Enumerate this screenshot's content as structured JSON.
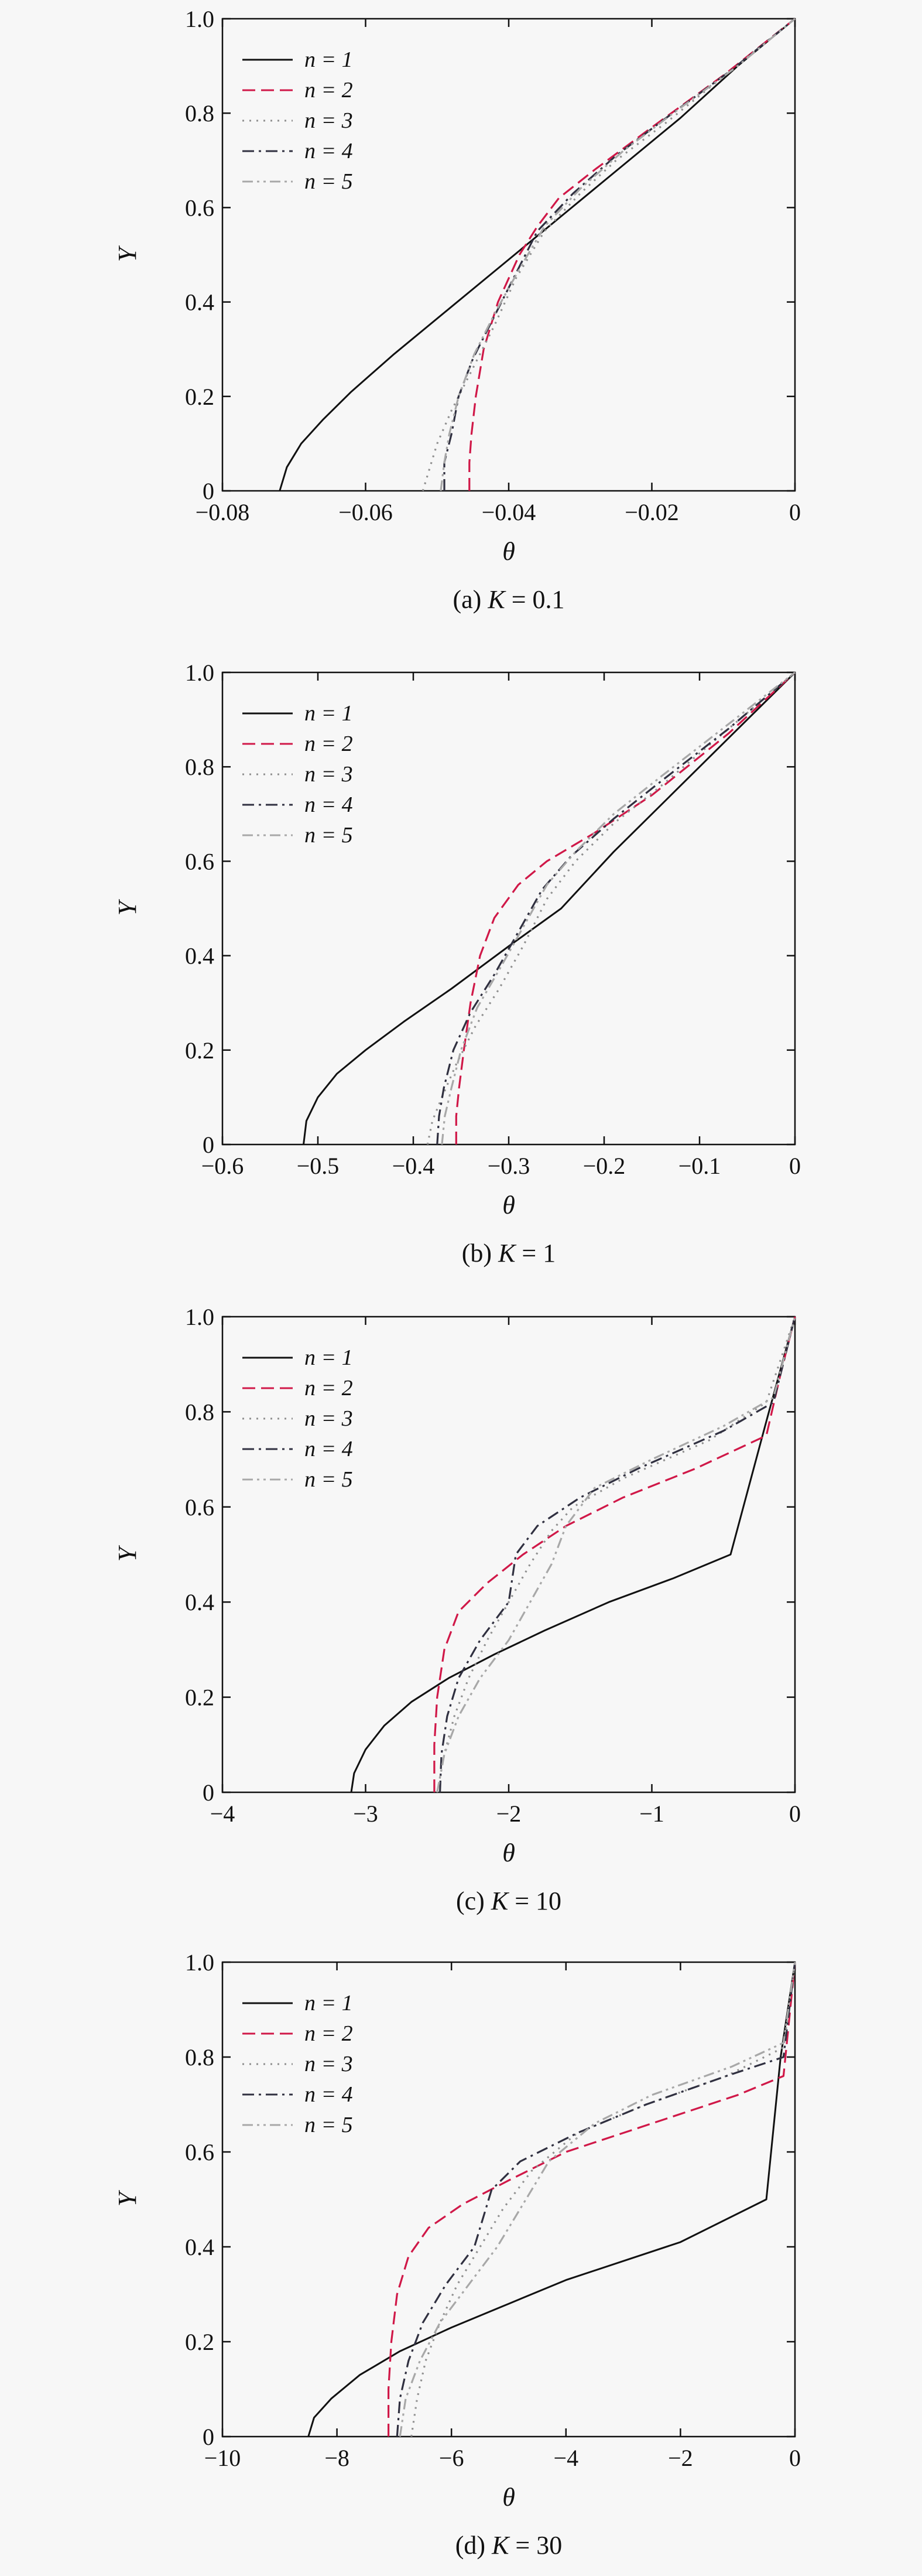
{
  "colors": {
    "background": "#f7f7f7",
    "axis": "#111111",
    "n1": "#111111",
    "n2": "#d01848",
    "n3": "#909090",
    "n4": "#303040",
    "n5": "#a8a8a8"
  },
  "chart_data": [
    {
      "type": "line",
      "caption_prefix": "(a) ",
      "caption_var": "K",
      "caption_suffix": " = 0.1",
      "xlabel": "θ",
      "ylabel": "Y",
      "xlim": [
        -0.08,
        0
      ],
      "ylim": [
        0,
        1.0
      ],
      "xticks": [
        -0.08,
        -0.06,
        -0.04,
        -0.02,
        0
      ],
      "xtick_labels": [
        "−0.08",
        "−0.06",
        "−0.04",
        "−0.02",
        "0"
      ],
      "yticks": [
        0,
        0.2,
        0.4,
        0.6,
        0.8,
        1.0
      ],
      "ytick_labels": [
        "0",
        "0.2",
        "0.4",
        "0.6",
        "0.8",
        "1.0"
      ],
      "legend_position": "top-left",
      "series": [
        {
          "name": "n = 1",
          "style": "solid",
          "x": [
            -0.072,
            -0.071,
            -0.069,
            -0.066,
            -0.062,
            -0.056,
            -0.048,
            -0.04,
            -0.032,
            -0.024,
            -0.016,
            -0.008,
            0
          ],
          "y": [
            0,
            0.05,
            0.1,
            0.15,
            0.21,
            0.29,
            0.39,
            0.49,
            0.59,
            0.69,
            0.79,
            0.9,
            1.0
          ]
        },
        {
          "name": "n = 2",
          "style": "dashed",
          "x": [
            -0.0455,
            -0.0455,
            -0.0452,
            -0.0446,
            -0.0435,
            -0.0415,
            -0.0385,
            -0.036,
            -0.033,
            -0.028,
            -0.02,
            -0.01,
            0
          ],
          "y": [
            0,
            0.06,
            0.12,
            0.2,
            0.3,
            0.4,
            0.5,
            0.56,
            0.62,
            0.68,
            0.77,
            0.88,
            1.0
          ]
        },
        {
          "name": "n = 3",
          "style": "dotted",
          "x": [
            -0.052,
            -0.051,
            -0.05,
            -0.048,
            -0.045,
            -0.042,
            -0.039,
            -0.035,
            -0.03,
            -0.025,
            -0.018,
            -0.009,
            0
          ],
          "y": [
            0,
            0.05,
            0.1,
            0.17,
            0.26,
            0.35,
            0.45,
            0.55,
            0.63,
            0.7,
            0.78,
            0.89,
            1.0
          ]
        },
        {
          "name": "n = 4",
          "style": "dashdot",
          "x": [
            -0.049,
            -0.049,
            -0.048,
            -0.047,
            -0.045,
            -0.042,
            -0.039,
            -0.036,
            -0.031,
            -0.025,
            -0.018,
            -0.009,
            0
          ],
          "y": [
            0,
            0.06,
            0.12,
            0.2,
            0.28,
            0.37,
            0.46,
            0.55,
            0.63,
            0.71,
            0.79,
            0.89,
            1.0
          ]
        },
        {
          "name": "n = 5",
          "style": "dashdotdot",
          "x": [
            -0.0495,
            -0.049,
            -0.0483,
            -0.047,
            -0.0448,
            -0.0418,
            -0.0385,
            -0.035,
            -0.03,
            -0.024,
            -0.017,
            -0.008,
            0
          ],
          "y": [
            0,
            0.06,
            0.12,
            0.2,
            0.29,
            0.38,
            0.47,
            0.56,
            0.64,
            0.72,
            0.8,
            0.9,
            1.0
          ]
        }
      ]
    },
    {
      "type": "line",
      "caption_prefix": "(b) ",
      "caption_var": "K",
      "caption_suffix": " = 1",
      "xlabel": "θ",
      "ylabel": "Y",
      "xlim": [
        -0.6,
        0
      ],
      "ylim": [
        0,
        1.0
      ],
      "xticks": [
        -0.6,
        -0.5,
        -0.4,
        -0.3,
        -0.2,
        -0.1,
        0
      ],
      "xtick_labels": [
        "−0.6",
        "−0.5",
        "−0.4",
        "−0.3",
        "−0.2",
        "−0.1",
        "0"
      ],
      "yticks": [
        0,
        0.2,
        0.4,
        0.6,
        0.8,
        1.0
      ],
      "ytick_labels": [
        "0",
        "0.2",
        "0.4",
        "0.6",
        "0.8",
        "1.0"
      ],
      "legend_position": "top-left",
      "series": [
        {
          "name": "n = 1",
          "style": "solid",
          "x": [
            -0.515,
            -0.512,
            -0.5,
            -0.48,
            -0.45,
            -0.41,
            -0.36,
            -0.3,
            -0.245,
            -0.19,
            -0.13,
            -0.065,
            0
          ],
          "y": [
            0,
            0.05,
            0.1,
            0.15,
            0.2,
            0.26,
            0.33,
            0.42,
            0.5,
            0.62,
            0.74,
            0.87,
            1.0
          ]
        },
        {
          "name": "n = 2",
          "style": "dashed",
          "x": [
            -0.355,
            -0.355,
            -0.352,
            -0.347,
            -0.34,
            -0.33,
            -0.315,
            -0.29,
            -0.26,
            -0.21,
            -0.15,
            -0.07,
            0
          ],
          "y": [
            0,
            0.06,
            0.12,
            0.2,
            0.3,
            0.4,
            0.48,
            0.55,
            0.6,
            0.66,
            0.74,
            0.87,
            1.0
          ]
        },
        {
          "name": "n = 3",
          "style": "dotted",
          "x": [
            -0.385,
            -0.38,
            -0.37,
            -0.355,
            -0.335,
            -0.31,
            -0.285,
            -0.26,
            -0.23,
            -0.19,
            -0.14,
            -0.07,
            0
          ],
          "y": [
            0,
            0.05,
            0.1,
            0.17,
            0.25,
            0.33,
            0.42,
            0.52,
            0.6,
            0.68,
            0.76,
            0.88,
            1.0
          ]
        },
        {
          "name": "n = 4",
          "style": "dashdot",
          "x": [
            -0.375,
            -0.373,
            -0.368,
            -0.358,
            -0.34,
            -0.315,
            -0.29,
            -0.265,
            -0.235,
            -0.19,
            -0.14,
            -0.07,
            0
          ],
          "y": [
            0,
            0.06,
            0.12,
            0.2,
            0.28,
            0.36,
            0.45,
            0.54,
            0.61,
            0.69,
            0.77,
            0.88,
            1.0
          ]
        },
        {
          "name": "n = 5",
          "style": "dashdotdot",
          "x": [
            -0.37,
            -0.367,
            -0.36,
            -0.35,
            -0.333,
            -0.31,
            -0.285,
            -0.26,
            -0.23,
            -0.19,
            -0.14,
            -0.07,
            0
          ],
          "y": [
            0,
            0.06,
            0.12,
            0.2,
            0.29,
            0.37,
            0.46,
            0.55,
            0.62,
            0.7,
            0.78,
            0.89,
            1.0
          ]
        }
      ]
    },
    {
      "type": "line",
      "caption_prefix": "(c) ",
      "caption_var": "K",
      "caption_suffix": " = 10",
      "xlabel": "θ",
      "ylabel": "Y",
      "xlim": [
        -4,
        0
      ],
      "ylim": [
        0,
        1.0
      ],
      "xticks": [
        -4,
        -3,
        -2,
        -1,
        0
      ],
      "xtick_labels": [
        "−4",
        "−3",
        "−2",
        "−1",
        "0"
      ],
      "yticks": [
        0,
        0.2,
        0.4,
        0.6,
        0.8,
        1.0
      ],
      "ytick_labels": [
        "0",
        "0.2",
        "0.4",
        "0.6",
        "0.8",
        "1.0"
      ],
      "legend_position": "top-left",
      "series": [
        {
          "name": "n = 1",
          "style": "solid",
          "x": [
            -3.1,
            -3.08,
            -3.0,
            -2.87,
            -2.68,
            -2.42,
            -2.1,
            -1.75,
            -1.3,
            -0.85,
            -0.45,
            -0.2,
            0
          ],
          "y": [
            0,
            0.04,
            0.09,
            0.14,
            0.19,
            0.24,
            0.29,
            0.34,
            0.4,
            0.45,
            0.5,
            0.78,
            1.0
          ]
        },
        {
          "name": "n = 2",
          "style": "dashed",
          "x": [
            -2.52,
            -2.52,
            -2.5,
            -2.45,
            -2.35,
            -2.15,
            -1.9,
            -1.6,
            -1.2,
            -0.7,
            -0.2,
            -0.1,
            0
          ],
          "y": [
            0,
            0.1,
            0.2,
            0.3,
            0.38,
            0.44,
            0.5,
            0.56,
            0.62,
            0.68,
            0.75,
            0.88,
            1.0
          ]
        },
        {
          "name": "n = 3",
          "style": "dotted",
          "x": [
            -2.5,
            -2.45,
            -2.38,
            -2.28,
            -2.15,
            -2.0,
            -1.85,
            -1.7,
            -1.55,
            -1.2,
            -0.6,
            -0.2,
            0
          ],
          "y": [
            0,
            0.08,
            0.16,
            0.24,
            0.32,
            0.4,
            0.48,
            0.55,
            0.6,
            0.66,
            0.74,
            0.82,
            1.0
          ]
        },
        {
          "name": "n = 4",
          "style": "dashdot",
          "x": [
            -2.48,
            -2.47,
            -2.43,
            -2.35,
            -2.2,
            -2.0,
            -1.95,
            -1.8,
            -1.5,
            -1.1,
            -0.5,
            -0.15,
            0
          ],
          "y": [
            0,
            0.08,
            0.16,
            0.24,
            0.32,
            0.4,
            0.5,
            0.56,
            0.62,
            0.68,
            0.76,
            0.82,
            1.0
          ]
        },
        {
          "name": "n = 5",
          "style": "dashdotdot",
          "x": [
            -2.5,
            -2.45,
            -2.35,
            -2.2,
            -2.0,
            -1.85,
            -1.7,
            -1.6,
            -1.4,
            -1.0,
            -0.5,
            -0.15,
            0
          ],
          "y": [
            0,
            0.08,
            0.16,
            0.24,
            0.32,
            0.4,
            0.48,
            0.56,
            0.64,
            0.7,
            0.77,
            0.83,
            1.0
          ]
        }
      ]
    },
    {
      "type": "line",
      "caption_prefix": "(d) ",
      "caption_var": "K",
      "caption_suffix": " = 30",
      "xlabel": "θ",
      "ylabel": "Y",
      "xlim": [
        -10,
        0
      ],
      "ylim": [
        0,
        1.0
      ],
      "xticks": [
        -10,
        -8,
        -6,
        -4,
        -2,
        0
      ],
      "xtick_labels": [
        "−10",
        "−8",
        "−6",
        "−4",
        "−2",
        "0"
      ],
      "yticks": [
        0,
        0.2,
        0.4,
        0.6,
        0.8,
        1.0
      ],
      "ytick_labels": [
        "0",
        "0.2",
        "0.4",
        "0.6",
        "0.8",
        "1.0"
      ],
      "legend_position": "top-left",
      "series": [
        {
          "name": "n = 1",
          "style": "solid",
          "x": [
            -8.5,
            -8.4,
            -8.1,
            -7.6,
            -6.9,
            -6.0,
            -5.0,
            -4.0,
            -3.0,
            -2.0,
            -0.5,
            -0.25,
            0
          ],
          "y": [
            0,
            0.04,
            0.08,
            0.13,
            0.18,
            0.23,
            0.28,
            0.33,
            0.37,
            0.41,
            0.5,
            0.8,
            1.0
          ]
        },
        {
          "name": "n = 2",
          "style": "dashed",
          "x": [
            -7.1,
            -7.1,
            -7.05,
            -6.95,
            -6.75,
            -6.4,
            -5.8,
            -5.0,
            -4.0,
            -2.5,
            -1.0,
            -0.2,
            0
          ],
          "y": [
            0,
            0.1,
            0.2,
            0.3,
            0.38,
            0.44,
            0.49,
            0.54,
            0.6,
            0.66,
            0.72,
            0.76,
            1.0
          ]
        },
        {
          "name": "n = 3",
          "style": "dotted",
          "x": [
            -6.7,
            -6.6,
            -6.45,
            -6.2,
            -5.9,
            -5.5,
            -5.1,
            -4.6,
            -3.8,
            -2.6,
            -1.2,
            -0.2,
            0
          ],
          "y": [
            0,
            0.08,
            0.16,
            0.24,
            0.32,
            0.4,
            0.48,
            0.56,
            0.64,
            0.7,
            0.76,
            0.82,
            1.0
          ]
        },
        {
          "name": "n = 4",
          "style": "dashdot",
          "x": [
            -6.95,
            -6.9,
            -6.75,
            -6.5,
            -6.1,
            -5.6,
            -5.3,
            -4.8,
            -3.8,
            -2.6,
            -1.2,
            -0.2,
            0
          ],
          "y": [
            0,
            0.08,
            0.16,
            0.24,
            0.32,
            0.4,
            0.52,
            0.58,
            0.64,
            0.7,
            0.76,
            0.8,
            1.0
          ]
        },
        {
          "name": "n = 5",
          "style": "dashdotdot",
          "x": [
            -6.9,
            -6.8,
            -6.55,
            -6.2,
            -5.7,
            -5.2,
            -4.8,
            -4.3,
            -3.5,
            -2.5,
            -1.1,
            -0.2,
            0
          ],
          "y": [
            0,
            0.08,
            0.16,
            0.24,
            0.32,
            0.4,
            0.48,
            0.58,
            0.66,
            0.72,
            0.78,
            0.83,
            1.0
          ]
        }
      ]
    }
  ]
}
